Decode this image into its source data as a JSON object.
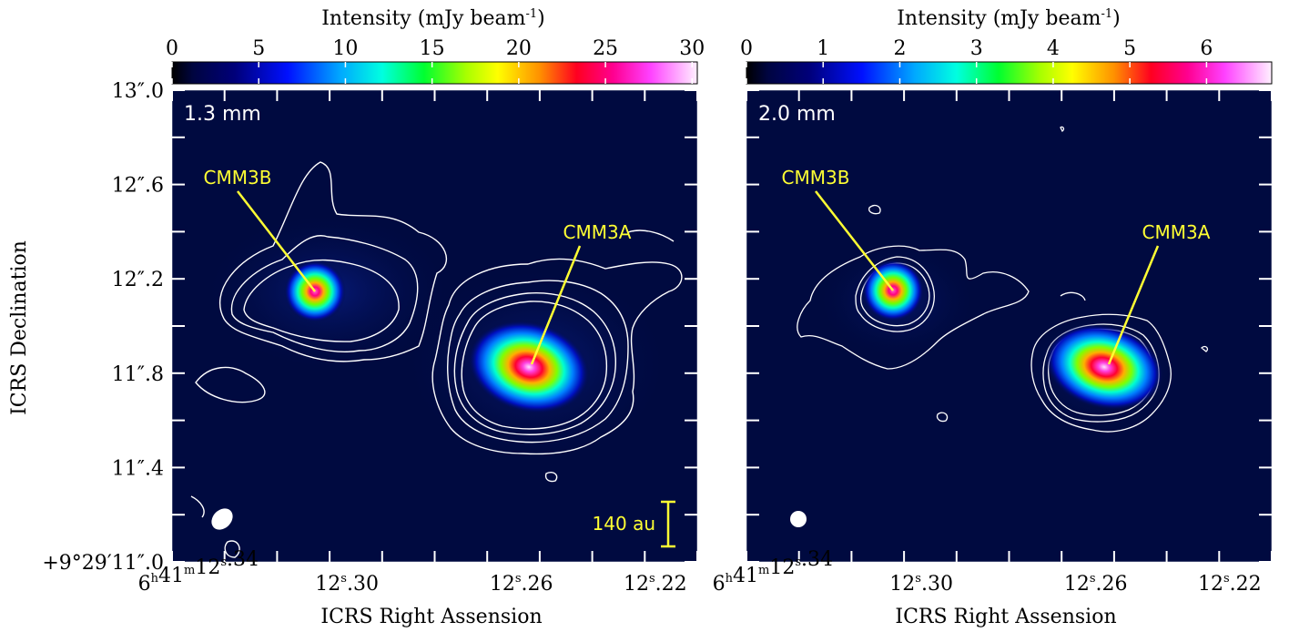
{
  "chart_data": [
    {
      "type": "heatmap",
      "panel_label": "1.3 mm",
      "colorbar": {
        "label": "Intensity  (mJy beam-1)",
        "label_main": "Intensity  (mJy beam",
        "label_sup": "-1",
        "label_close": ")",
        "ticks": [
          0,
          5,
          10,
          15,
          20,
          25,
          30
        ],
        "range": [
          0,
          30.3
        ]
      },
      "ylabel": "ICRS Declination",
      "xlabel": "ICRS Right Assension",
      "y_ticks": [
        "+9°29′11″.0",
        "11″.4",
        "11″.8",
        "12″.2",
        "12″.6",
        "13″.0"
      ],
      "x_ticks": [
        "6h41m12s.34",
        "12s.30",
        "12s.26",
        "12s.22"
      ],
      "sources": [
        {
          "name": "CMM3B",
          "peak": 30,
          "shape": "compact"
        },
        {
          "name": "CMM3A",
          "peak": 30,
          "shape": "elongated"
        }
      ],
      "scale_bar": "140 au",
      "contours": "white, extended emission around both sources"
    },
    {
      "type": "heatmap",
      "panel_label": "2.0 mm",
      "colorbar": {
        "label": "Intensity  (mJy beam-1)",
        "label_main": "Intensity  (mJy beam",
        "label_sup": "-1",
        "label_close": ")",
        "ticks": [
          0,
          1,
          2,
          3,
          4,
          5,
          6
        ],
        "range": [
          0,
          6.85
        ]
      },
      "xlabel": "ICRS Right Assension",
      "x_ticks": [
        "6h41m12s.34",
        "12s.30",
        "12s.26",
        "12s.22"
      ],
      "sources": [
        {
          "name": "CMM3B",
          "peak": 6.8,
          "shape": "compact"
        },
        {
          "name": "CMM3A",
          "peak": 6.8,
          "shape": "elongated"
        }
      ],
      "contours": "white, compact emission around both sources"
    }
  ],
  "colors": {
    "label_yellow": "#ffff33",
    "background": "#000a40",
    "contour": "#ffffff"
  }
}
